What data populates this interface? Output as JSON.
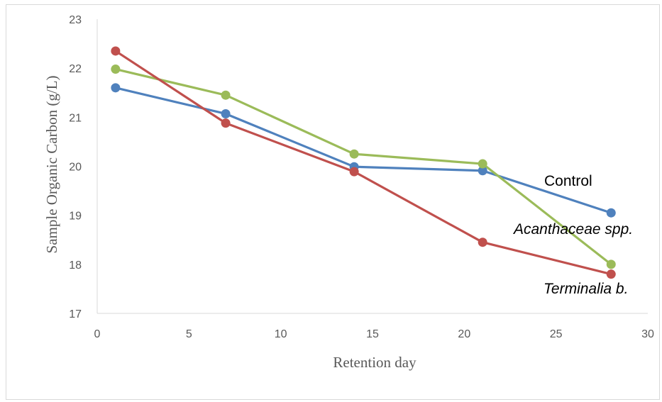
{
  "chart_data": {
    "type": "line",
    "title": "",
    "xlabel": "Retention day",
    "ylabel": "Sample Organic Carbon (g/L)",
    "xlim": [
      0,
      30
    ],
    "ylim": [
      17,
      23
    ],
    "xticks": [
      0,
      5,
      10,
      15,
      20,
      25,
      30
    ],
    "yticks": [
      17,
      18,
      19,
      20,
      21,
      22,
      23
    ],
    "grid": false,
    "series": [
      {
        "name": "Control",
        "italic": false,
        "color": "#4f81bd",
        "points": [
          [
            1,
            21.6
          ],
          [
            7,
            21.07
          ],
          [
            14,
            19.99
          ],
          [
            21,
            19.91
          ],
          [
            28,
            19.05
          ]
        ]
      },
      {
        "name": "Acanthaceae spp.",
        "italic": true,
        "color": "#9bbb59",
        "points": [
          [
            1,
            21.98
          ],
          [
            7,
            21.45
          ],
          [
            14,
            20.25
          ],
          [
            21,
            20.05
          ],
          [
            28,
            18.0
          ]
        ]
      },
      {
        "name": "Terminalia b.",
        "italic": true,
        "color": "#c0504d",
        "points": [
          [
            1,
            22.35
          ],
          [
            7,
            20.88
          ],
          [
            14,
            19.89
          ],
          [
            21,
            18.45
          ],
          [
            28,
            17.8
          ]
        ]
      }
    ]
  }
}
